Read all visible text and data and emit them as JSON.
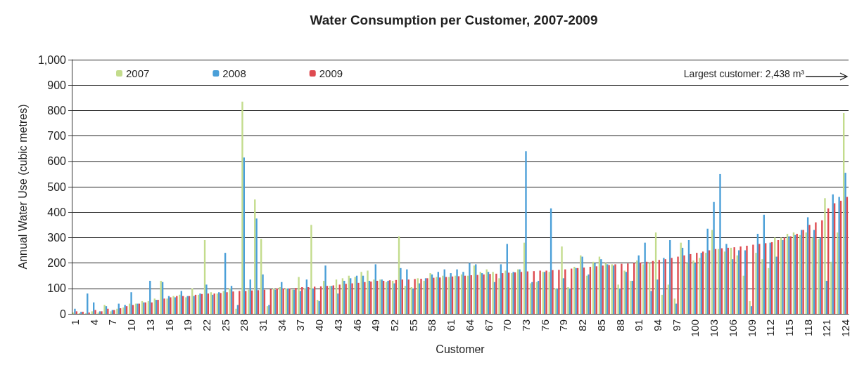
{
  "chart_data": {
    "type": "bar",
    "title": "Water Consumption per Customer, 2007-2009",
    "xlabel": "Customer",
    "ylabel": "Annual Water Use (cubic metres)",
    "annotations": [
      "Largest customer: 2,438 m³"
    ],
    "categories": [
      "1",
      null,
      null,
      "4",
      null,
      null,
      "7",
      null,
      null,
      "10",
      null,
      null,
      "13",
      null,
      null,
      "16",
      null,
      null,
      "19",
      null,
      null,
      "22",
      null,
      null,
      "25",
      null,
      null,
      "28",
      null,
      null,
      "31",
      null,
      null,
      "34",
      null,
      null,
      "37",
      null,
      null,
      "40",
      null,
      null,
      "43",
      null,
      null,
      "46",
      null,
      null,
      "49",
      null,
      null,
      "52",
      null,
      null,
      "55",
      null,
      null,
      "58",
      null,
      null,
      "61",
      null,
      null,
      "64",
      null,
      null,
      "67",
      null,
      null,
      "70",
      null,
      null,
      "73",
      null,
      null,
      "76",
      null,
      null,
      "79",
      null,
      null,
      "82",
      null,
      null,
      "85",
      null,
      null,
      "88",
      null,
      null,
      "91",
      null,
      null,
      "94",
      null,
      null,
      "97",
      null,
      null,
      "100",
      null,
      null,
      "103",
      null,
      null,
      "106",
      null,
      null,
      "109",
      null,
      null,
      "112",
      null,
      null,
      "115",
      null,
      null,
      "118",
      null,
      null,
      "121",
      null,
      null,
      "124"
    ],
    "series": [
      {
        "name": "2007",
        "color": "#c3dc8c",
        "values": [
          5,
          3,
          2,
          10,
          5,
          35,
          10,
          20,
          25,
          40,
          40,
          50,
          50,
          60,
          130,
          60,
          70,
          75,
          65,
          100,
          75,
          290,
          85,
          80,
          90,
          100,
          20,
          835,
          95,
          450,
          295,
          30,
          100,
          105,
          100,
          95,
          145,
          100,
          350,
          55,
          130,
          110,
          135,
          140,
          150,
          145,
          165,
          170,
          135,
          135,
          125,
          130,
          305,
          110,
          105,
          140,
          130,
          160,
          145,
          150,
          145,
          150,
          155,
          150,
          190,
          165,
          175,
          165,
          140,
          170,
          160,
          175,
          280,
          120,
          125,
          165,
          165,
          100,
          265,
          105,
          185,
          230,
          150,
          205,
          225,
          200,
          195,
          115,
          170,
          130,
          210,
          195,
          200,
          320,
          75,
          115,
          60,
          280,
          200,
          210,
          220,
          240,
          330,
          255,
          245,
          260,
          230,
          150,
          50,
          240,
          215,
          180,
          300,
          300,
          315,
          320,
          310,
          320,
          300,
          295,
          455,
          205,
          320,
          790
        ]
      },
      {
        "name": "2008",
        "color": "#4a9fd8",
        "values": [
          20,
          8,
          80,
          45,
          10,
          30,
          15,
          40,
          35,
          85,
          40,
          45,
          130,
          55,
          125,
          70,
          65,
          90,
          70,
          70,
          80,
          115,
          75,
          85,
          240,
          110,
          35,
          615,
          135,
          375,
          155,
          35,
          95,
          125,
          100,
          95,
          90,
          135,
          100,
          50,
          190,
          110,
          80,
          130,
          140,
          150,
          150,
          130,
          195,
          135,
          130,
          120,
          180,
          175,
          100,
          120,
          140,
          155,
          165,
          175,
          160,
          175,
          165,
          200,
          195,
          160,
          165,
          125,
          195,
          275,
          165,
          175,
          640,
          125,
          130,
          165,
          415,
          100,
          140,
          100,
          180,
          225,
          155,
          200,
          215,
          195,
          190,
          100,
          165,
          130,
          230,
          280,
          90,
          135,
          220,
          290,
          40,
          260,
          290,
          200,
          240,
          335,
          440,
          550,
          275,
          215,
          250,
          250,
          30,
          315,
          390,
          280,
          225,
          290,
          305,
          310,
          330,
          380,
          330,
          300,
          130,
          470,
          460,
          555
        ]
      },
      {
        "name": "2009",
        "color": "#de4a50",
        "values": [
          10,
          8,
          5,
          15,
          10,
          20,
          15,
          22,
          30,
          35,
          40,
          45,
          45,
          55,
          60,
          65,
          70,
          70,
          70,
          75,
          78,
          80,
          80,
          82,
          85,
          88,
          90,
          90,
          92,
          93,
          95,
          97,
          100,
          100,
          100,
          102,
          105,
          105,
          107,
          108,
          110,
          112,
          115,
          118,
          120,
          122,
          125,
          127,
          130,
          130,
          132,
          133,
          135,
          135,
          137,
          138,
          140,
          142,
          143,
          145,
          147,
          148,
          150,
          152,
          153,
          155,
          157,
          158,
          160,
          162,
          163,
          165,
          167,
          168,
          170,
          170,
          172,
          173,
          175,
          178,
          180,
          182,
          185,
          187,
          190,
          192,
          195,
          197,
          198,
          200,
          202,
          205,
          208,
          212,
          215,
          220,
          225,
          230,
          235,
          240,
          245,
          250,
          255,
          258,
          260,
          262,
          265,
          268,
          272,
          275,
          278,
          282,
          290,
          300,
          305,
          315,
          330,
          350,
          360,
          368,
          415,
          435,
          445,
          460
        ]
      }
    ],
    "ylim": [
      0,
      1000
    ],
    "yticks": [
      0,
      100,
      200,
      300,
      400,
      500,
      600,
      700,
      800,
      900,
      {
        "value": 1000,
        "label": "1,000"
      }
    ],
    "grid": "y",
    "legend": "top left"
  }
}
